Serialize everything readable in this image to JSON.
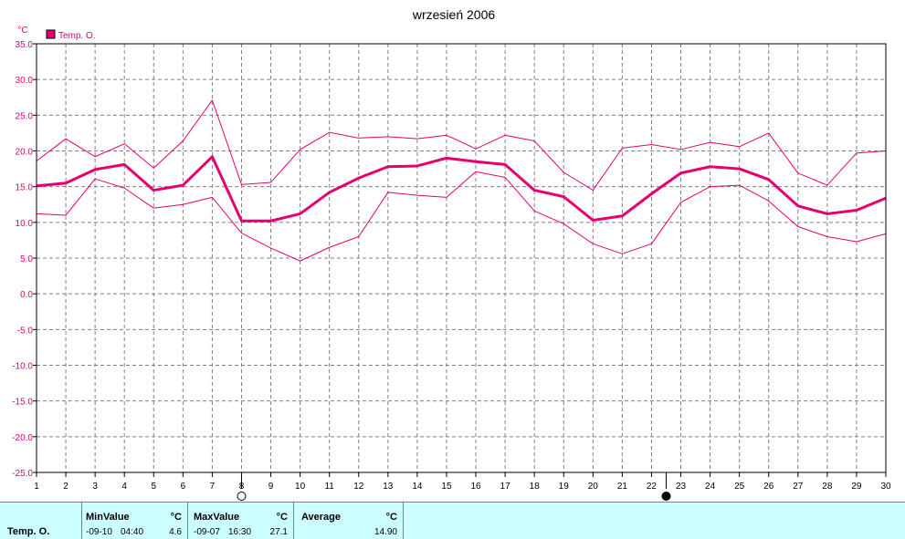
{
  "chart_data": {
    "type": "line",
    "title": "wrzesień 2006",
    "ylabel": "°C",
    "ylim": [
      -25,
      35
    ],
    "yticks": [
      "35.0",
      "30.0",
      "25.0",
      "20.0",
      "15.0",
      "10.0",
      "5.0",
      "0.0",
      "-5.0",
      "-10.0",
      "-15.0",
      "-20.0",
      "-25.0"
    ],
    "x": [
      1,
      2,
      3,
      4,
      5,
      6,
      7,
      8,
      9,
      10,
      11,
      12,
      13,
      14,
      15,
      16,
      17,
      18,
      19,
      20,
      21,
      22,
      23,
      24,
      25,
      26,
      27,
      28,
      29,
      30
    ],
    "xlim": [
      1,
      30
    ],
    "grid": true,
    "legend": [
      "Temp. O."
    ],
    "color": "#e6006e",
    "series": [
      {
        "name": "Temp. O.",
        "values": [
          15.1,
          15.5,
          17.4,
          18.1,
          14.5,
          15.2,
          19.2,
          10.2,
          10.2,
          11.2,
          14.2,
          16.2,
          17.8,
          17.9,
          19.0,
          18.5,
          18.1,
          14.5,
          13.6,
          10.3,
          10.9,
          14.0,
          16.9,
          17.8,
          17.5,
          16.0,
          12.3,
          11.2,
          11.7,
          13.4
        ]
      },
      {
        "values": [
          18.6,
          21.7,
          19.2,
          21.0,
          17.6,
          21.4,
          27.1,
          15.3,
          15.6,
          20.2,
          22.6,
          21.8,
          22.0,
          21.7,
          22.2,
          20.3,
          22.2,
          21.4,
          17.0,
          14.5,
          20.4,
          20.9,
          20.2,
          21.2,
          20.6,
          22.5,
          16.9,
          15.2,
          19.7,
          20.0
        ]
      },
      {
        "values": [
          11.2,
          11.0,
          16.1,
          14.8,
          12.0,
          12.5,
          13.5,
          8.5,
          6.4,
          4.6,
          6.5,
          8.0,
          14.2,
          13.8,
          13.5,
          17.1,
          16.3,
          11.6,
          9.8,
          7.0,
          5.6,
          7.0,
          12.8,
          15.0,
          15.2,
          13.0,
          9.4,
          8.0,
          7.3,
          8.4
        ]
      }
    ],
    "markers": {
      "open_circle_day": 8,
      "filled_circle_day": 22.5
    }
  },
  "summary": {
    "series_name": "Temp. O.",
    "min": {
      "label": "MinValue",
      "unit": "°C",
      "date": "-09-10",
      "time": "04:40",
      "value": "4.6"
    },
    "max": {
      "label": "MaxValue",
      "unit": "°C",
      "date": "-09-07",
      "time": "16:30",
      "value": "27.1"
    },
    "avg": {
      "label": "Average",
      "unit": "°C",
      "value": "14.90"
    }
  }
}
